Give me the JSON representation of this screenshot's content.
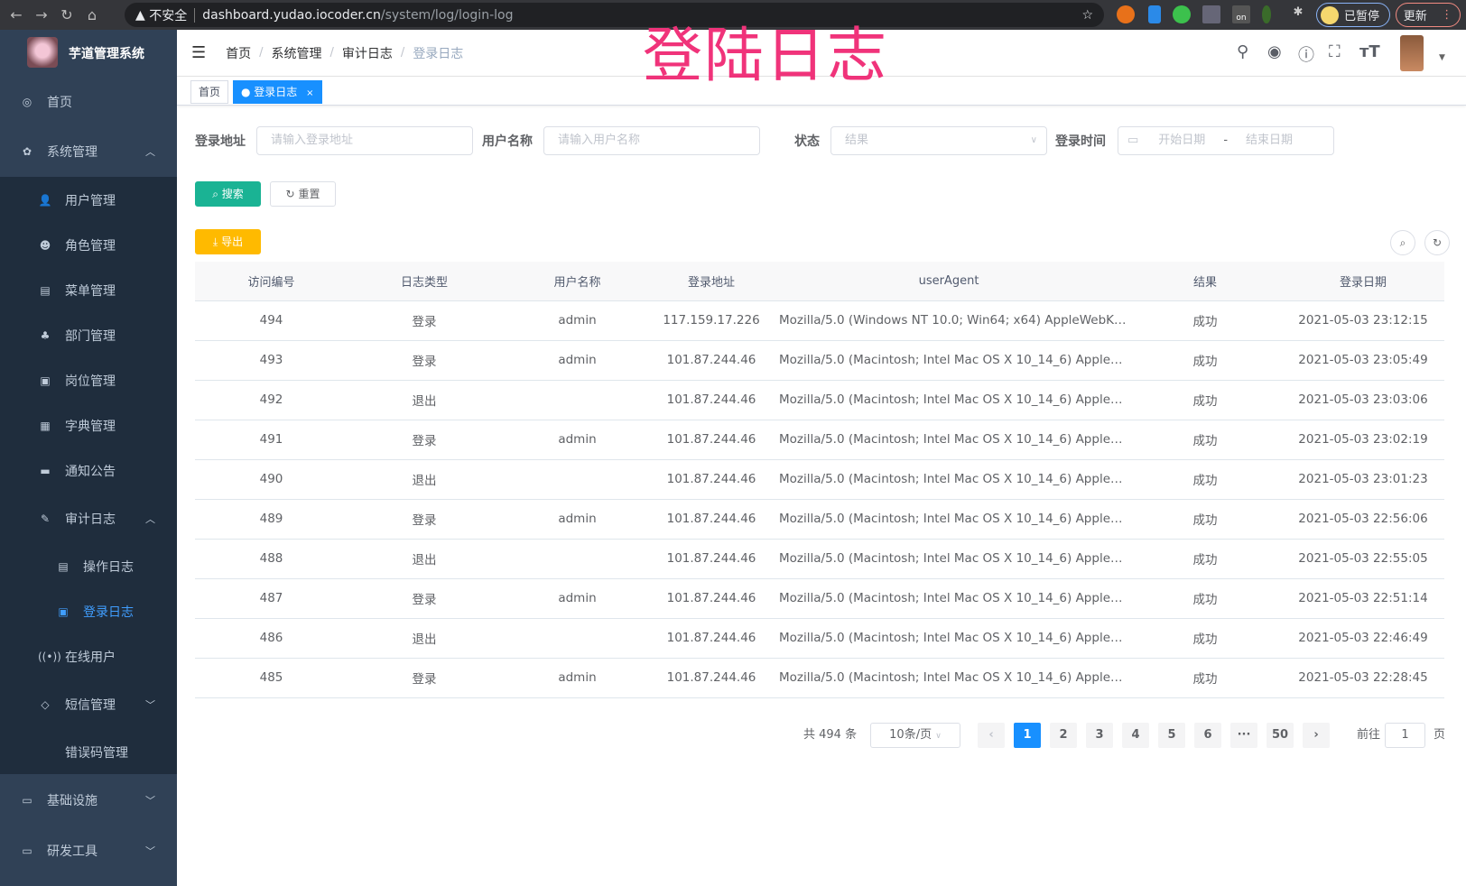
{
  "browser": {
    "insecure": "不安全",
    "host": "dashboard.yudao.iocoder.cn",
    "path": "/system/log/login-log",
    "paused": "已暂停",
    "update": "更新",
    "ext_badge": "on"
  },
  "overlay_title": "登陆日志",
  "sidebar": {
    "brand": "芋道管理系统",
    "items": [
      {
        "label": "首页",
        "icon": "dashboard-icon"
      },
      {
        "label": "系统管理",
        "icon": "gear-icon",
        "arrow": "^"
      },
      {
        "label": "用户管理",
        "icon": "user-icon"
      },
      {
        "label": "角色管理",
        "icon": "role-icon"
      },
      {
        "label": "菜单管理",
        "icon": "menu-icon"
      },
      {
        "label": "部门管理",
        "icon": "tree-icon"
      },
      {
        "label": "岗位管理",
        "icon": "post-icon"
      },
      {
        "label": "字典管理",
        "icon": "dict-icon"
      },
      {
        "label": "通知公告",
        "icon": "message-icon"
      },
      {
        "label": "审计日志",
        "icon": "edit-icon",
        "arrow": "^"
      },
      {
        "label": "操作日志",
        "icon": "form-icon"
      },
      {
        "label": "登录日志",
        "icon": "logininfor-icon",
        "active": true
      },
      {
        "label": "在线用户",
        "icon": "online-icon"
      },
      {
        "label": "短信管理",
        "icon": "shield-icon",
        "arrow": "v"
      },
      {
        "label": "错误码管理",
        "icon": "code-icon"
      },
      {
        "label": "基础设施",
        "icon": "monitor-icon",
        "arrow": "v"
      },
      {
        "label": "研发工具",
        "icon": "tool-icon",
        "arrow": "v"
      }
    ]
  },
  "breadcrumb": [
    "首页",
    "系统管理",
    "审计日志",
    "登录日志"
  ],
  "tags": {
    "home": "首页",
    "current": "登录日志"
  },
  "filters": {
    "address_label": "登录地址",
    "address_placeholder": "请输入登录地址",
    "user_label": "用户名称",
    "user_placeholder": "请输入用户名称",
    "status_label": "状态",
    "status_placeholder": "结果",
    "time_label": "登录时间",
    "start_placeholder": "开始日期",
    "range_sep": "-",
    "end_placeholder": "结束日期"
  },
  "actions": {
    "search": "搜索",
    "reset": "重置",
    "export": "导出"
  },
  "colors": {
    "sidebar": "#304156",
    "submenu": "#1f2d3d",
    "active": "#409eff",
    "search": "#1ab394",
    "export": "#ffba00",
    "primary": "#1890ff"
  },
  "table": {
    "columns": [
      "访问编号",
      "日志类型",
      "用户名称",
      "登录地址",
      "userAgent",
      "结果",
      "登录日期"
    ],
    "rows": [
      [
        "494",
        "登录",
        "admin",
        "117.159.17.226",
        "Mozilla/5.0 (Windows NT 10.0; Win64; x64) AppleWebKit...",
        "成功",
        "2021-05-03 23:12:15"
      ],
      [
        "493",
        "登录",
        "admin",
        "101.87.244.46",
        "Mozilla/5.0 (Macintosh; Intel Mac OS X 10_14_6) AppleWe...",
        "成功",
        "2021-05-03 23:05:49"
      ],
      [
        "492",
        "退出",
        "",
        "101.87.244.46",
        "Mozilla/5.0 (Macintosh; Intel Mac OS X 10_14_6) AppleWe...",
        "成功",
        "2021-05-03 23:03:06"
      ],
      [
        "491",
        "登录",
        "admin",
        "101.87.244.46",
        "Mozilla/5.0 (Macintosh; Intel Mac OS X 10_14_6) AppleWe...",
        "成功",
        "2021-05-03 23:02:19"
      ],
      [
        "490",
        "退出",
        "",
        "101.87.244.46",
        "Mozilla/5.0 (Macintosh; Intel Mac OS X 10_14_6) AppleWe...",
        "成功",
        "2021-05-03 23:01:23"
      ],
      [
        "489",
        "登录",
        "admin",
        "101.87.244.46",
        "Mozilla/5.0 (Macintosh; Intel Mac OS X 10_14_6) AppleWe...",
        "成功",
        "2021-05-03 22:56:06"
      ],
      [
        "488",
        "退出",
        "",
        "101.87.244.46",
        "Mozilla/5.0 (Macintosh; Intel Mac OS X 10_14_6) AppleWe...",
        "成功",
        "2021-05-03 22:55:05"
      ],
      [
        "487",
        "登录",
        "admin",
        "101.87.244.46",
        "Mozilla/5.0 (Macintosh; Intel Mac OS X 10_14_6) AppleWe...",
        "成功",
        "2021-05-03 22:51:14"
      ],
      [
        "486",
        "退出",
        "",
        "101.87.244.46",
        "Mozilla/5.0 (Macintosh; Intel Mac OS X 10_14_6) AppleWe...",
        "成功",
        "2021-05-03 22:46:49"
      ],
      [
        "485",
        "登录",
        "admin",
        "101.87.244.46",
        "Mozilla/5.0 (Macintosh; Intel Mac OS X 10_14_6) AppleWe...",
        "成功",
        "2021-05-03 22:28:45"
      ]
    ]
  },
  "pagination": {
    "total": "共 494 条",
    "page_size": "10条/页",
    "pages": [
      "1",
      "2",
      "3",
      "4",
      "5",
      "6",
      "···",
      "50"
    ],
    "current": "1",
    "goto_label": "前往",
    "goto_value": "1",
    "goto_suffix": "页",
    "prev": "‹",
    "next": "›"
  }
}
